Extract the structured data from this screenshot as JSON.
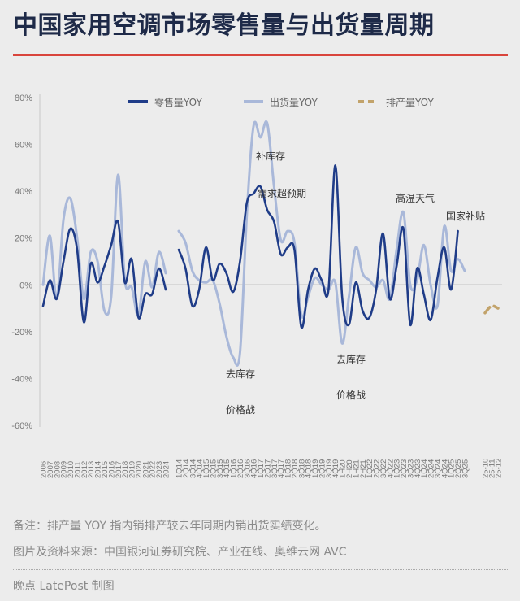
{
  "header": {
    "title": "中国家用空调市场零售量与出货量周期"
  },
  "footer": {
    "note": "备注：排产量 YOY 指内销排产较去年同期内销出货实绩变化。",
    "source": "图片及资料来源：中国银河证券研究院、产业在线、奥维云网 AVC",
    "credit": "晚点 LatePost 制图"
  },
  "colors": {
    "retail": "#1f3c88",
    "shipment": "#a9b8d9",
    "production": "#c2a36b",
    "accent": "#d9453c",
    "title": "#1e2a48"
  },
  "chart_data": {
    "type": "line",
    "title": "中国家用空调市场零售量与出货量周期",
    "ylim": [
      -60,
      80
    ],
    "yticks": [
      "80%",
      "60%",
      "40%",
      "20%",
      "0%",
      "-20%",
      "-40%",
      "-60%"
    ],
    "ytick_values": [
      80,
      60,
      40,
      20,
      0,
      -20,
      -40,
      -60
    ],
    "grid": false,
    "legend_placement": "top",
    "legend": [
      "零售量YOY",
      "出货量YOY",
      "排产量YOY"
    ],
    "segments": {
      "annual": {
        "x": [
          "2006",
          "2007",
          "2008",
          "2009",
          "2010",
          "2011",
          "2012",
          "2013",
          "2014",
          "2015",
          "2016",
          "2017",
          "2018",
          "2019",
          "2020",
          "2021",
          "2022",
          "2023",
          "2024"
        ],
        "retail": [
          -9,
          2,
          -6,
          10,
          24,
          15,
          -16,
          9,
          1,
          8,
          17,
          27,
          1,
          11,
          -14,
          -4,
          -4,
          7,
          -2
        ],
        "shipment": [
          0,
          21,
          -6,
          28,
          37,
          20,
          -6,
          14,
          10,
          -11,
          -5,
          47,
          2,
          -1,
          -13,
          10,
          -1,
          14,
          5
        ]
      },
      "quarterly": {
        "x": [
          "1Q14",
          "2Q14",
          "3Q14",
          "4Q14",
          "1Q15",
          "2Q15",
          "3Q15",
          "4Q15",
          "1Q16",
          "2Q16",
          "3Q16",
          "4Q16",
          "1Q17",
          "2Q17",
          "3Q17",
          "4Q17",
          "1Q18",
          "2Q18",
          "3Q18",
          "4Q18",
          "1Q19",
          "2Q19",
          "3Q19",
          "4Q19",
          "1H20",
          "2H20",
          "1H21",
          "2H21",
          "1Q22",
          "2Q22",
          "3Q22",
          "4Q22",
          "1Q23",
          "2Q23",
          "3Q23",
          "4Q23",
          "1Q24",
          "2Q24",
          "3Q24",
          "4Q24",
          "1Q25",
          "2Q25",
          "3Q25"
        ],
        "retail": [
          15,
          7,
          -9,
          -2,
          16,
          2,
          9,
          5,
          -3,
          10,
          35,
          39,
          42,
          32,
          27,
          13,
          16,
          15,
          -18,
          -2,
          7,
          2,
          -2,
          51,
          -5,
          -17,
          1,
          -11,
          -14,
          -2,
          22,
          -6,
          8,
          24,
          -17,
          7,
          -4,
          -15,
          3,
          16,
          -2,
          23,
          null
        ],
        "shipment": [
          23,
          18,
          6,
          2,
          1,
          2,
          -8,
          -22,
          -31,
          -29,
          30,
          68,
          63,
          69,
          42,
          19,
          23,
          18,
          -13,
          -5,
          3,
          0,
          -2,
          1,
          -25,
          -5,
          16,
          5,
          2,
          -1,
          2,
          -6,
          15,
          31,
          0,
          2,
          17,
          0,
          -9,
          25,
          6,
          11,
          6
        ]
      },
      "monthly": {
        "x": [
          "25-10",
          "25-11",
          "25-12"
        ],
        "production": [
          -12,
          -9,
          -10
        ]
      }
    },
    "annotations": [
      "补库存",
      "需求超预期",
      "去库存",
      "价格战",
      "去库存",
      "价格战",
      "高温天气",
      "国家补贴"
    ]
  }
}
